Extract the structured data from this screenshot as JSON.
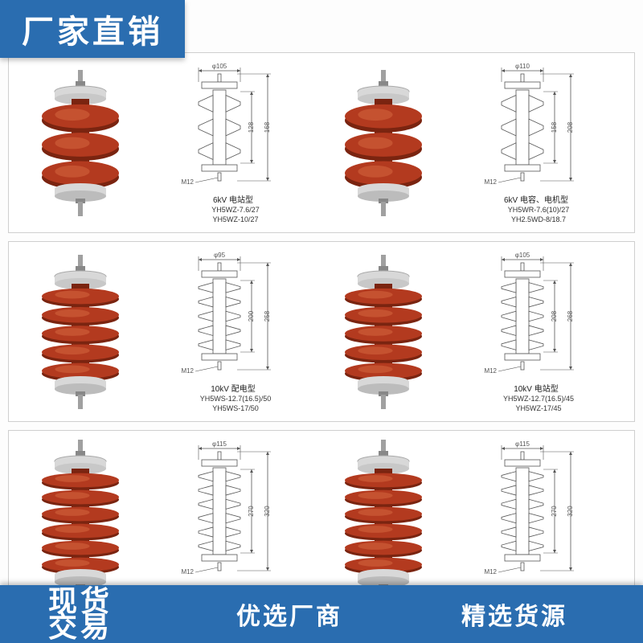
{
  "badges": {
    "top": "厂家直销",
    "bottom_left_line1": "现货",
    "bottom_left_line2": "交易",
    "bottom_right_1": "优选厂商",
    "bottom_right_2": "精选货源"
  },
  "products": {
    "r1c1": {
      "caption_title": "6kV 电站型",
      "model1": "YH5WZ-7.6/27",
      "model2": "YH5WZ-10/27",
      "fins": 3,
      "diag_top": "φ105",
      "diag_h1": "128",
      "diag_h2": "168",
      "diag_bolt": "M12"
    },
    "r1c2": {
      "caption_title": "6kV 电容、电机型",
      "model1": "YH5WR-7.6(10)/27",
      "model2": "YH2.5WD-8/18.7",
      "fins": 3,
      "diag_top": "φ110",
      "diag_h1": "158",
      "diag_h2": "208",
      "diag_bolt": "M12"
    },
    "r2c1": {
      "caption_title": "10kV 配电型",
      "model1": "YH5WS-12.7(16.5)/50",
      "model2": "YH5WS-17/50",
      "fins": 5,
      "diag_top": "φ95",
      "diag_h1": "200",
      "diag_h2": "258",
      "diag_bolt": "M12"
    },
    "r2c2": {
      "caption_title": "10kV 电站型",
      "model1": "YH5WZ-12.7(16.5)/45",
      "model2": "YH5WZ-17/45",
      "fins": 5,
      "diag_top": "φ105",
      "diag_h1": "208",
      "diag_h2": "268",
      "diag_bolt": "M12"
    },
    "r3c1": {
      "caption_title": "",
      "model1": "",
      "model2": "",
      "fins": 6,
      "diag_top": "φ115",
      "diag_h1": "270",
      "diag_h2": "320",
      "diag_bolt": "M12"
    },
    "r3c2": {
      "caption_title": "",
      "model1": "",
      "model2": "",
      "fins": 6,
      "diag_top": "φ115",
      "diag_h1": "270",
      "diag_h2": "320",
      "diag_bolt": "M12"
    }
  },
  "style": {
    "arrester_color": "#b33a1f",
    "arrester_shadow": "#7a2410",
    "arrester_highlight": "#d86a42",
    "cap_color": "#d8d8d8",
    "bolt_color": "#a0a0a0",
    "diagram_line": "#555555",
    "diagram_fill": "#ffffff",
    "badge_bg": "#2a6db0"
  }
}
